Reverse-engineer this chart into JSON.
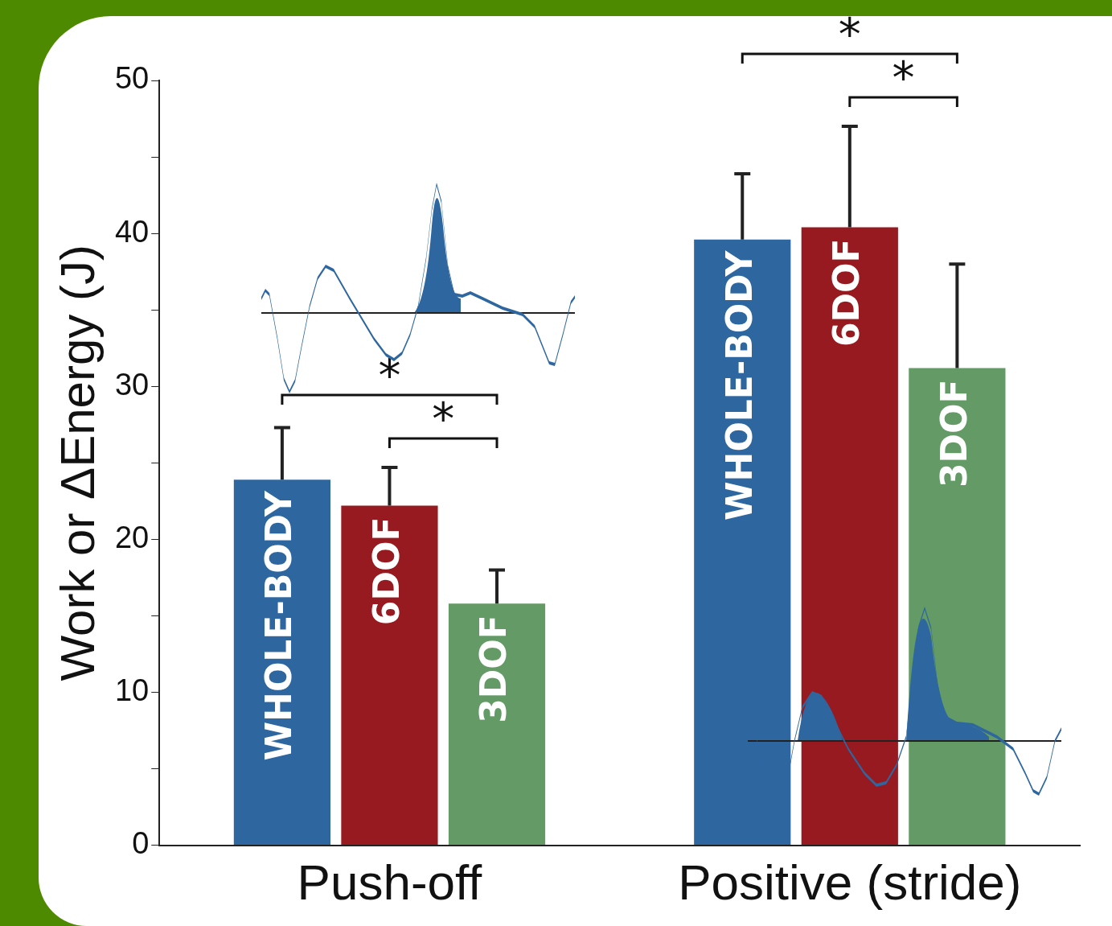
{
  "chart_data": {
    "type": "bar",
    "categories": [
      "Push-off",
      "Positive (stride)"
    ],
    "series": [
      {
        "name": "WHOLE-BODY",
        "color": "#2e67a0",
        "values": [
          23.9,
          39.6
        ],
        "errors": [
          [
            23.9,
            27.3
          ],
          [
            39.6,
            43.9
          ]
        ]
      },
      {
        "name": "6DOF",
        "color": "#961a1f",
        "values": [
          22.2,
          40.4
        ],
        "errors": [
          [
            22.2,
            24.7
          ],
          [
            40.4,
            47.0
          ]
        ]
      },
      {
        "name": "3DOF",
        "color": "#639a65",
        "values": [
          15.8,
          31.2
        ],
        "errors": [
          [
            15.8,
            18.0
          ],
          [
            31.2,
            38.0
          ]
        ]
      }
    ],
    "ylabel": "Work or ΔEnergy (J)",
    "ylim": [
      0,
      50
    ],
    "yticks": [
      0,
      {
        "value": 5,
        "label": null
      },
      10,
      {
        "value": 15,
        "label": null
      },
      20,
      {
        "value": 25,
        "label": null
      },
      30,
      {
        "value": 35,
        "label": null
      },
      40,
      {
        "value": 45,
        "label": null
      },
      50
    ],
    "annotations": [
      "*",
      "*",
      "*",
      "*"
    ],
    "grid": false
  }
}
